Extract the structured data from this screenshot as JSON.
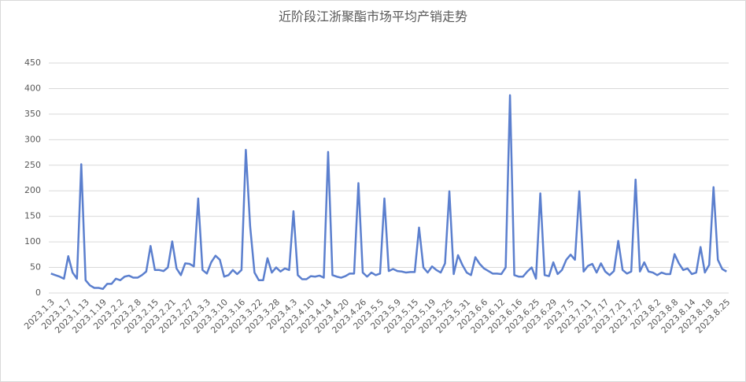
{
  "chart_data": {
    "type": "line",
    "title": "近阶段江浙聚酯市场平均产销走势",
    "categories": [
      "2023.1.3",
      null,
      null,
      null,
      "2023.1.7",
      null,
      null,
      null,
      "2023.1.13",
      null,
      null,
      null,
      "2023.1.19",
      null,
      null,
      null,
      "2023.2.2",
      null,
      null,
      null,
      "2023.2.8",
      null,
      null,
      null,
      "2023.2.15",
      null,
      null,
      null,
      "2023.2.21",
      null,
      null,
      null,
      "2023.2.27",
      null,
      null,
      null,
      "2023.3.3",
      null,
      null,
      null,
      "2023.3.10",
      null,
      null,
      null,
      "2023.3.16",
      null,
      null,
      null,
      "2023.3.22",
      null,
      null,
      null,
      "2023.3.28",
      null,
      null,
      null,
      "2023.4.3",
      null,
      null,
      null,
      "2023.4.10",
      null,
      null,
      null,
      "2023.4.14",
      null,
      null,
      null,
      "2023.4.20",
      null,
      null,
      null,
      "2023.4.26",
      null,
      null,
      null,
      "2023.5.5",
      null,
      null,
      null,
      "2023.5.9",
      null,
      null,
      null,
      "2023.5.15",
      null,
      null,
      null,
      "2023.5.19",
      null,
      null,
      null,
      "2023.5.25",
      null,
      null,
      null,
      "2023.5.31",
      null,
      null,
      null,
      "2023.6.6",
      null,
      null,
      null,
      "2023.6.12",
      null,
      null,
      null,
      "2023.6.16",
      null,
      null,
      null,
      "2023.6.25",
      null,
      null,
      null,
      "2023.6.29",
      null,
      null,
      null,
      "2023.7.5",
      null,
      null,
      null,
      "2023.7.11",
      null,
      null,
      null,
      "2023.7.17",
      null,
      null,
      null,
      "2023.7.21",
      null,
      null,
      null,
      "2023.7.27",
      null,
      null,
      null,
      "2023.8.2",
      null,
      null,
      null,
      "2023.8.8",
      null,
      null,
      null,
      "2023.8.14",
      null,
      null,
      null,
      "2023.8.18",
      null,
      null,
      null,
      "2023.8.25"
    ],
    "values": [
      38,
      35,
      32,
      28,
      72,
      40,
      28,
      252,
      25,
      15,
      10,
      10,
      8,
      18,
      18,
      28,
      25,
      32,
      34,
      30,
      30,
      35,
      42,
      92,
      45,
      45,
      43,
      50,
      101,
      48,
      35,
      58,
      57,
      52,
      185,
      45,
      38,
      60,
      73,
      65,
      32,
      35,
      45,
      37,
      45,
      280,
      130,
      40,
      25,
      25,
      68,
      40,
      50,
      42,
      48,
      45,
      160,
      35,
      27,
      27,
      33,
      32,
      34,
      30,
      276,
      35,
      32,
      30,
      33,
      38,
      38,
      215,
      40,
      32,
      40,
      35,
      38,
      185,
      43,
      47,
      43,
      42,
      40,
      41,
      41,
      128,
      50,
      40,
      52,
      45,
      40,
      58,
      199,
      37,
      74,
      55,
      40,
      35,
      70,
      57,
      48,
      43,
      38,
      38,
      37,
      50,
      387,
      35,
      32,
      32,
      42,
      50,
      28,
      195,
      35,
      33,
      60,
      37,
      45,
      65,
      75,
      65,
      199,
      42,
      53,
      57,
      40,
      58,
      42,
      35,
      43,
      102,
      45,
      38,
      42,
      222,
      42,
      60,
      42,
      40,
      35,
      40,
      37,
      37,
      76,
      58,
      45,
      48,
      37,
      40,
      90,
      40,
      55,
      207,
      65,
      47,
      42
    ],
    "color": "#5b7fce",
    "ylim": [
      0,
      450
    ],
    "yticks": [
      0,
      50,
      100,
      150,
      200,
      250,
      300,
      350,
      400,
      450
    ],
    "grid": true
  }
}
